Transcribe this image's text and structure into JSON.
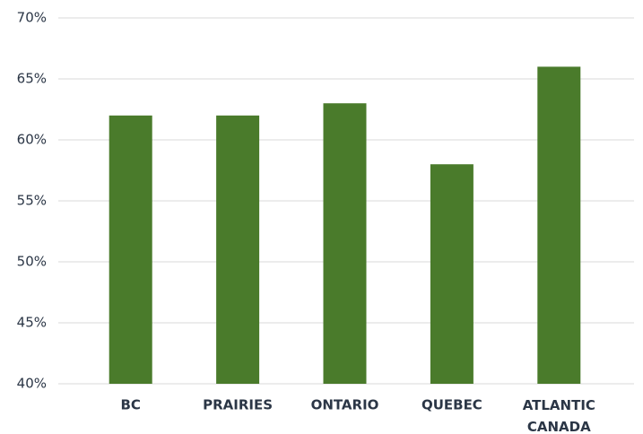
{
  "chart_data": {
    "type": "bar",
    "categories": [
      "BC",
      "PRAIRIES",
      "ONTARIO",
      "QUEBEC",
      "ATLANTIC CANADA"
    ],
    "values": [
      62,
      62,
      63,
      58,
      66
    ],
    "color": "#4a7b2b",
    "ylim": [
      40,
      70
    ],
    "yticks": [
      {
        "value": 40,
        "label": "40%"
      },
      {
        "value": 45,
        "label": "45%"
      },
      {
        "value": 50,
        "label": "50%"
      },
      {
        "value": 55,
        "label": "55%"
      },
      {
        "value": 60,
        "label": "60%"
      },
      {
        "value": 65,
        "label": "65%"
      },
      {
        "value": 70,
        "label": "70%"
      }
    ],
    "grid": true
  }
}
